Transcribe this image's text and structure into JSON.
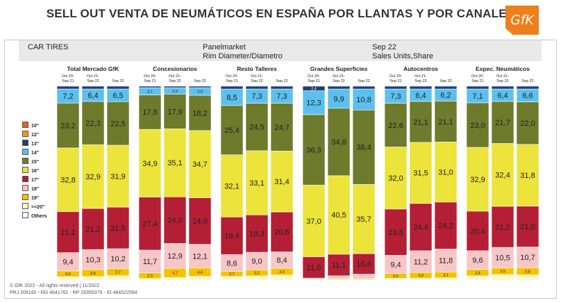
{
  "title": "SELL OUT VENTA DE NEUMÁTICOS EN ESPAÑA POR LLANTAS Y POR CANALES",
  "logo_text": "GfK",
  "info": {
    "left": "CAR TIRES",
    "mid1": "Panelmarket",
    "mid2": "Rim Diameter/Diametro",
    "right1": "Sep 22",
    "right2": "Sales Units,Share"
  },
  "footer": {
    "copyright": "© GfK 2022 - All rights reserved | 11/2022",
    "refs": "PRJ 206192 - RG 4641761 - RP 29355379 - ID 484522594"
  },
  "legend": [
    {
      "label": "10\"",
      "color": "#f05a28"
    },
    {
      "label": "12\"",
      "color": "#f7941d"
    },
    {
      "label": "13\"",
      "color": "#1f3f7a"
    },
    {
      "label": "14\"",
      "color": "#5bc0ee"
    },
    {
      "label": "15\"",
      "color": "#6e7a2c"
    },
    {
      "label": "16\"",
      "color": "#ece33b"
    },
    {
      "label": "17\"",
      "color": "#b51f35"
    },
    {
      "label": "18\"",
      "color": "#f7c6c6"
    },
    {
      "label": "19\"",
      "color": "#f6c200"
    },
    {
      "label": ">=20\"",
      "color": "#fff8c8"
    },
    {
      "label": "Others",
      "color": "#ffffff"
    }
  ],
  "chart_data": {
    "type": "bar",
    "stacked": true,
    "unit": "% share",
    "periods": [
      "Oct 20-Sep 21",
      "Oct 21-Sep 22",
      "Sep 22"
    ],
    "groups": [
      {
        "name": "Total Mercado GfK",
        "bars": [
          {
            "13\"": 1.5,
            "14\"": 7.2,
            "15\"": 23.2,
            "16\"": 32.8,
            "17\"": 21.2,
            "18\"": 9.4,
            "19\"": 3.0,
            ">=20\"": 1.7
          },
          {
            "13\"": 1.5,
            "14\"": 6.4,
            "15\"": 22.3,
            "16\"": 32.9,
            "17\"": 21.2,
            "18\"": 10.3,
            "19\"": 3.6,
            ">=20\"": 1.8
          },
          {
            "13\"": 1.5,
            "14\"": 6.5,
            "15\"": 22.5,
            "16\"": 31.9,
            "17\"": 21.5,
            "18\"": 10.2,
            "19\"": 3.7,
            ">=20\"": 2.2
          }
        ]
      },
      {
        "name": "Concesionarios",
        "bars": [
          {
            "13\"": 0.8,
            "14\"": 3.7,
            "15\"": 17.8,
            "16\"": 34.9,
            "17\"": 27.4,
            "18\"": 11.7,
            "19\"": 2.9,
            ">=20\"": 0.8
          },
          {
            "13\"": 0.8,
            "14\"": 3.3,
            "15\"": 17.9,
            "16\"": 35.1,
            "17\"": 24.0,
            "18\"": 12.9,
            "19\"": 4.7,
            ">=20\"": 1.3
          },
          {
            "13\"": 0.8,
            "14\"": 3.9,
            "15\"": 18.2,
            "16\"": 34.7,
            "17\"": 24.0,
            "18\"": 12.1,
            "19\"": 4.4,
            ">=20\"": 1.9
          }
        ]
      },
      {
        "name": "Resto Talleres",
        "bars": [
          {
            "13\"": 1.5,
            "14\"": 8.5,
            "15\"": 25.4,
            "16\"": 32.1,
            "17\"": 19.4,
            "18\"": 8.6,
            "19\"": 2.7,
            ">=20\"": 1.8
          },
          {
            "13\"": 1.5,
            "14\"": 7.3,
            "15\"": 24.5,
            "16\"": 33.1,
            "17\"": 19.3,
            "18\"": 9.0,
            "19\"": 3.2,
            ">=20\"": 2.1
          },
          {
            "13\"": 1.5,
            "14\"": 7.3,
            "15\"": 24.7,
            "16\"": 31.4,
            "17\"": 20.6,
            "18\"": 8.4,
            "19\"": 3.5,
            ">=20\"": 2.6
          }
        ]
      },
      {
        "name": "Grandes Superficies",
        "bars": [
          {
            "13\"": 2.4,
            "14\"": 12.3,
            "15\"": 36.3,
            "16\"": 37.0,
            "17\"": 11.0,
            "18\"": 0.5,
            "19\"": 0.3,
            ">=20\"": 0.2
          },
          {
            "13\"": 1.5,
            "14\"": 9.9,
            "15\"": 34.8,
            "16\"": 40.5,
            "17\"": 11.1,
            "18\"": 1.4,
            "19\"": 0.5,
            ">=20\"": 0.3
          },
          {
            "13\"": 1.5,
            "14\"": 10.8,
            "15\"": 38.4,
            "16\"": 35.7,
            "17\"": 10.6,
            "18\"": 2.2,
            "19\"": 0.5,
            ">=20\"": 0.3
          }
        ]
      },
      {
        "name": "Autocentros",
        "bars": [
          {
            "13\"": 1.5,
            "14\"": 7.3,
            "15\"": 22.6,
            "16\"": 32.0,
            "17\"": 23.8,
            "18\"": 9.4,
            "19\"": 2.5,
            ">=20\"": 0.9
          },
          {
            "13\"": 1.5,
            "14\"": 6.4,
            "15\"": 21.1,
            "16\"": 31.5,
            "17\"": 24.4,
            "18\"": 11.2,
            "19\"": 3.0,
            ">=20\"": 0.9
          },
          {
            "13\"": 1.5,
            "14\"": 6.2,
            "15\"": 21.1,
            "16\"": 31.0,
            "17\"": 24.2,
            "18\"": 11.8,
            "19\"": 3.1,
            ">=20\"": 1.1
          }
        ]
      },
      {
        "name": "Espec. Neumáticos",
        "bars": [
          {
            "13\"": 1.5,
            "14\"": 7.1,
            "15\"": 23.0,
            "16\"": 32.9,
            "17\"": 20.4,
            "18\"": 9.6,
            "19\"": 3.4,
            ">=20\"": 2.1
          },
          {
            "13\"": 1.5,
            "14\"": 6.4,
            "15\"": 21.7,
            "16\"": 32.4,
            "17\"": 21.2,
            "18\"": 10.5,
            "19\"": 3.5,
            ">=20\"": 2.8
          },
          {
            "13\"": 1.5,
            "14\"": 6.6,
            "15\"": 22.0,
            "16\"": 31.8,
            "17\"": 21.0,
            "18\"": 10.7,
            "19\"": 3.8,
            ">=20\"": 2.6
          }
        ]
      }
    ],
    "printed_labels": {
      "13\"": [
        [
          "",
          "",
          ""
        ],
        [
          "",
          "",
          ""
        ],
        [
          "",
          "",
          ""
        ],
        [
          "2,4",
          "",
          ""
        ],
        [
          "",
          "",
          ""
        ],
        [
          "",
          "",
          ""
        ]
      ],
      "14\"": [
        [
          "7,2",
          "6,4",
          "6,5"
        ],
        [
          "3,7",
          "3,3",
          "3,9"
        ],
        [
          "8,5",
          "7,3",
          "7,3"
        ],
        [
          "12,3",
          "9,9",
          "10,8"
        ],
        [
          "7,3",
          "6,4",
          "6,2"
        ],
        [
          "7,1",
          "6,4",
          "6,6"
        ]
      ],
      "15\"": [
        [
          "23,2",
          "22,3",
          "22,5"
        ],
        [
          "17,8",
          "17,9",
          "18,2"
        ],
        [
          "25,4",
          "24,5",
          "24,7"
        ],
        [
          "36,3",
          "34,8",
          "38,4"
        ],
        [
          "22,6",
          "21,1",
          "21,1"
        ],
        [
          "23,0",
          "21,7",
          "22,0"
        ]
      ],
      "16\"": [
        [
          "32,8",
          "32,9",
          "31,9"
        ],
        [
          "34,9",
          "35,1",
          "34,7"
        ],
        [
          "32,1",
          "33,1",
          "31,4"
        ],
        [
          "37,0",
          "40,5",
          "35,7"
        ],
        [
          "32,0",
          "31,5",
          "31,0"
        ],
        [
          "32,9",
          "32,4",
          "31,8"
        ]
      ],
      "17\"": [
        [
          "21,2",
          "21,2",
          "21,5"
        ],
        [
          "27,4",
          "24,0",
          "24,0"
        ],
        [
          "19,4",
          "19,3",
          "20,6"
        ],
        [
          "11,0",
          "11,1",
          "10,6"
        ],
        [
          "23,8",
          "24,4",
          "24,2"
        ],
        [
          "20,4",
          "21,2",
          "21,0"
        ]
      ],
      "18\"": [
        [
          "9,4",
          "10,3",
          "10,2"
        ],
        [
          "11,7",
          "12,9",
          "12,1"
        ],
        [
          "8,6",
          "9,0",
          "8,4"
        ],
        [
          "",
          "",
          ""
        ],
        [
          "9,4",
          "11,2",
          "11,8"
        ],
        [
          "9,6",
          "10,5",
          "10,7"
        ]
      ],
      "19\"": [
        [
          "3,0",
          "3,6",
          "3,7"
        ],
        [
          "2,9",
          "4,7",
          "4,4"
        ],
        [
          "2,7",
          "3,2",
          "3,5"
        ],
        [
          "",
          "",
          ""
        ],
        [
          "2,5",
          "3,0",
          "3,1"
        ],
        [
          "3,4",
          "3,5",
          "3,8"
        ]
      ]
    }
  }
}
